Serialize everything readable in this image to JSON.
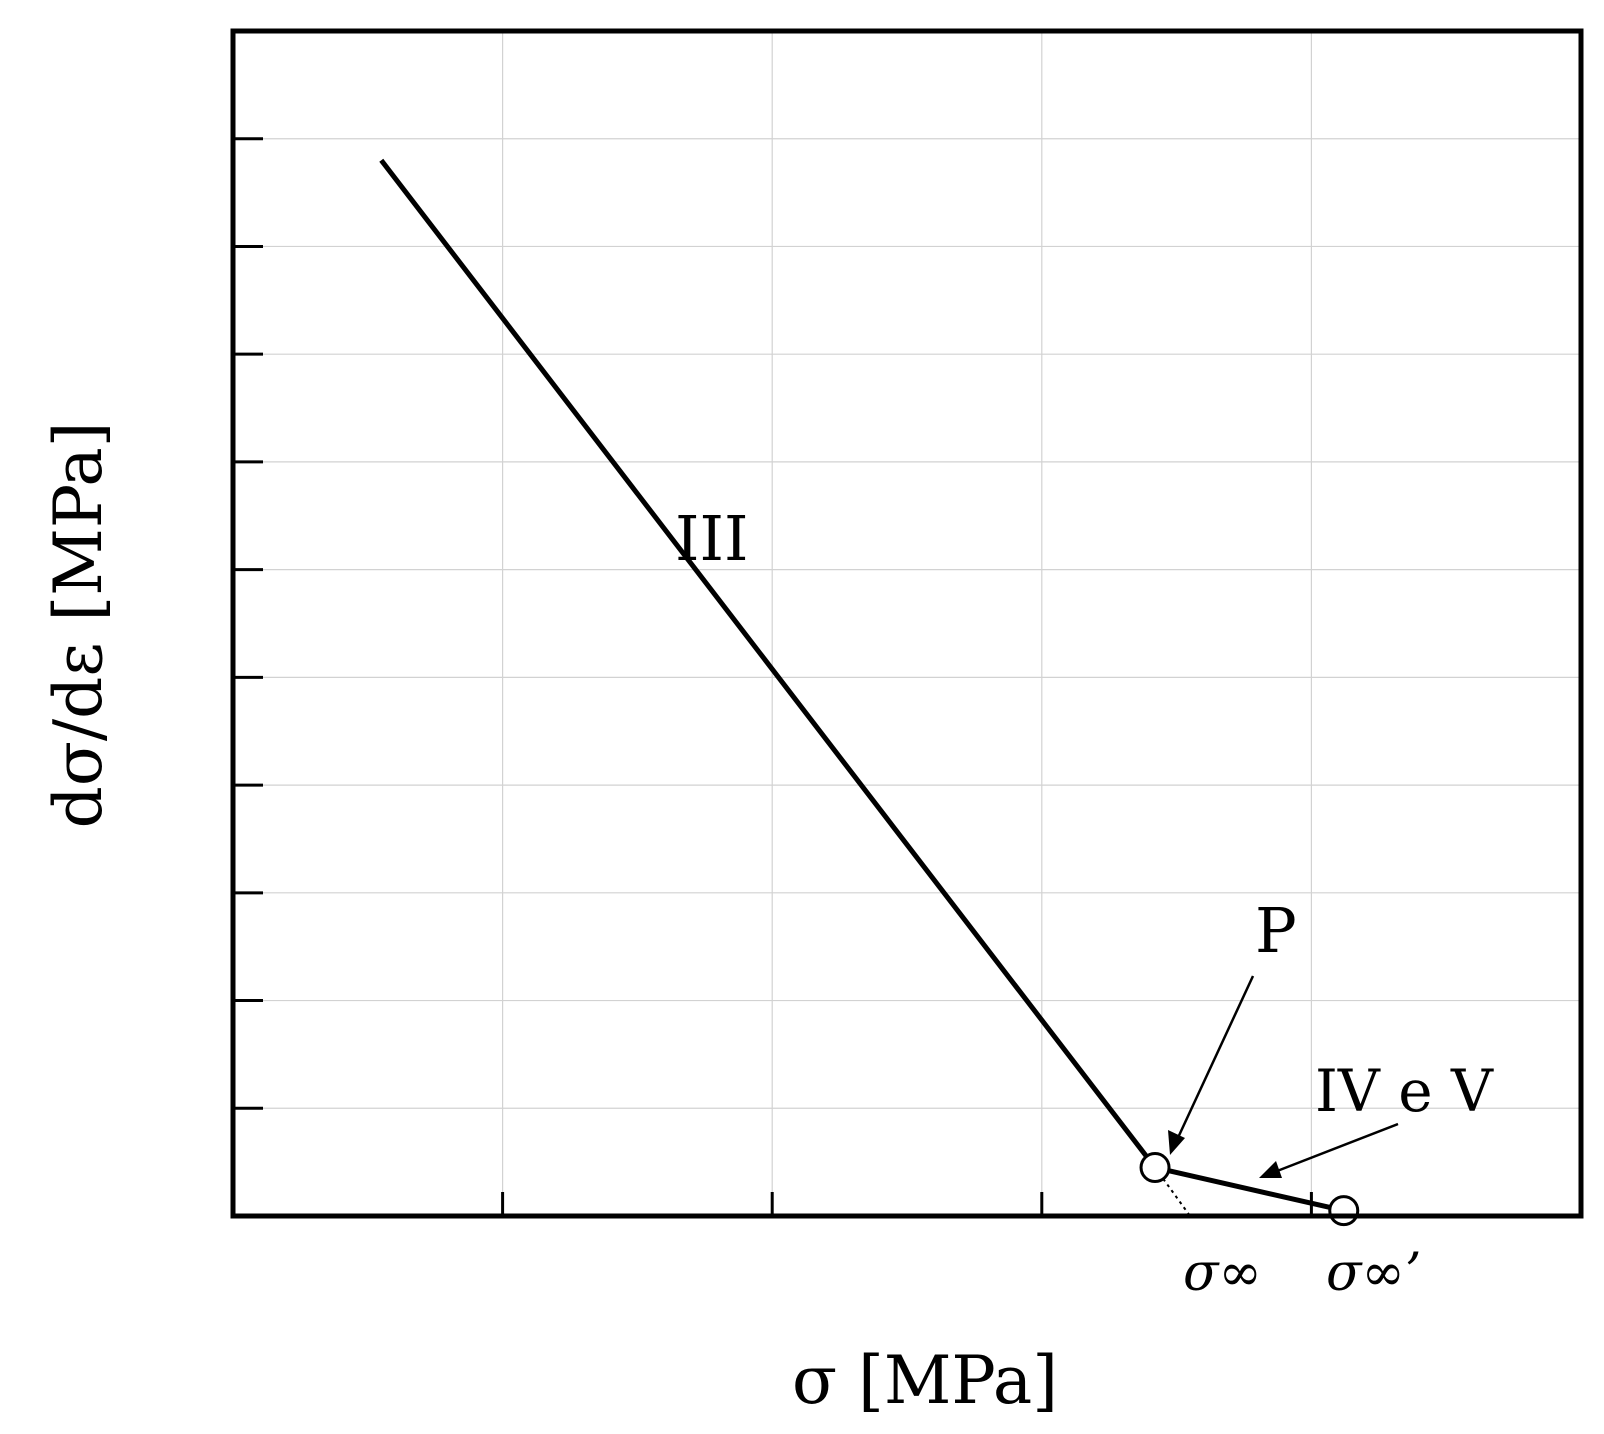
{
  "chart_data": {
    "type": "line",
    "xlabel": "σ [MPa]",
    "ylabel": "dσ/dε [MPa]",
    "xlim": [
      0,
      5
    ],
    "ylim": [
      0,
      11
    ],
    "grid": true,
    "series": [
      {
        "x": [
          0.55,
          3.42
        ],
        "y": [
          9.8,
          0.45
        ]
      },
      {
        "x": [
          3.42,
          4.12
        ],
        "y": [
          0.45,
          0.05
        ]
      }
    ],
    "extension": {
      "x": [
        3.42,
        3.55
      ],
      "y": [
        0.45,
        0.0
      ]
    },
    "markers": [
      {
        "x": 3.42,
        "y": 0.45
      },
      {
        "x": 4.12,
        "y": 0.05
      }
    ],
    "annotations": {
      "stage3": "III",
      "point_p": "P",
      "stage45": "IV e V",
      "sigma_inf": "σ∞",
      "sigma_inf_prime": "σ∞’"
    }
  }
}
